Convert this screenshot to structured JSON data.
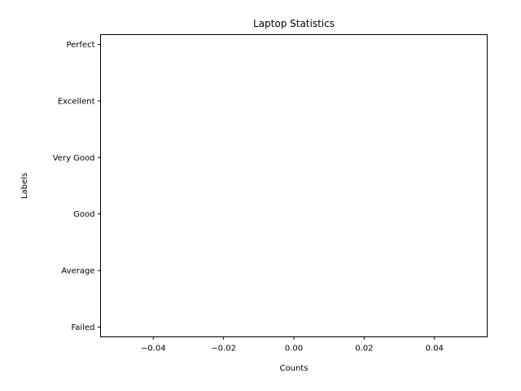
{
  "chart_data": {
    "type": "bar",
    "orientation": "horizontal",
    "title": "Laptop Statistics",
    "xlabel": "Counts",
    "ylabel": "Labels",
    "categories": [
      "Failed",
      "Average",
      "Good",
      "Very Good",
      "Excellent",
      "Perfect"
    ],
    "values": [
      0,
      0,
      0,
      0,
      0,
      0
    ],
    "xlim": [
      -0.055,
      0.055
    ],
    "xticks": [
      -0.04,
      -0.02,
      0.0,
      0.02,
      0.04
    ],
    "xtick_labels": [
      "−0.04",
      "−0.02",
      "0.00",
      "0.02",
      "0.04"
    ],
    "grid": false,
    "legend": "none",
    "colors": {
      "axis": "#000000",
      "bar": "#1f77b4",
      "background": "#ffffff"
    }
  }
}
